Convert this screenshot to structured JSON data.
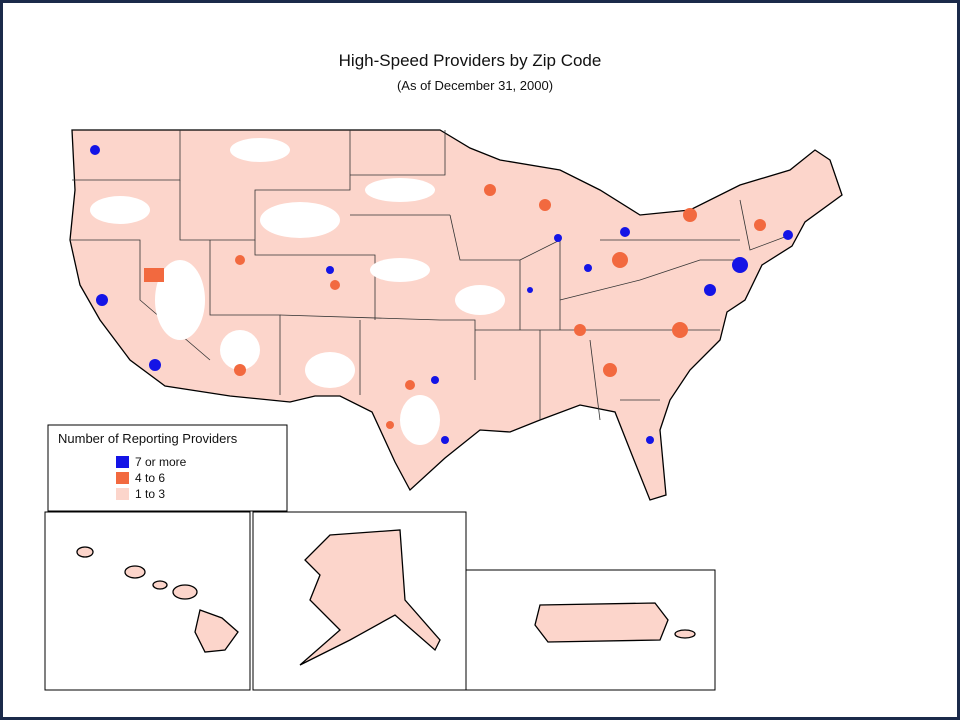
{
  "header": {
    "title": "High-Speed Providers by Zip Code",
    "subtitle": "(As of December 31, 2000)"
  },
  "legend": {
    "title": "Number of Reporting Providers",
    "items": [
      {
        "label": "7 or more",
        "color": "#1414e6"
      },
      {
        "label": "4 to 6",
        "color": "#f2693f"
      },
      {
        "label": "1 to 3",
        "color": "#fcd5cb"
      }
    ]
  }
}
